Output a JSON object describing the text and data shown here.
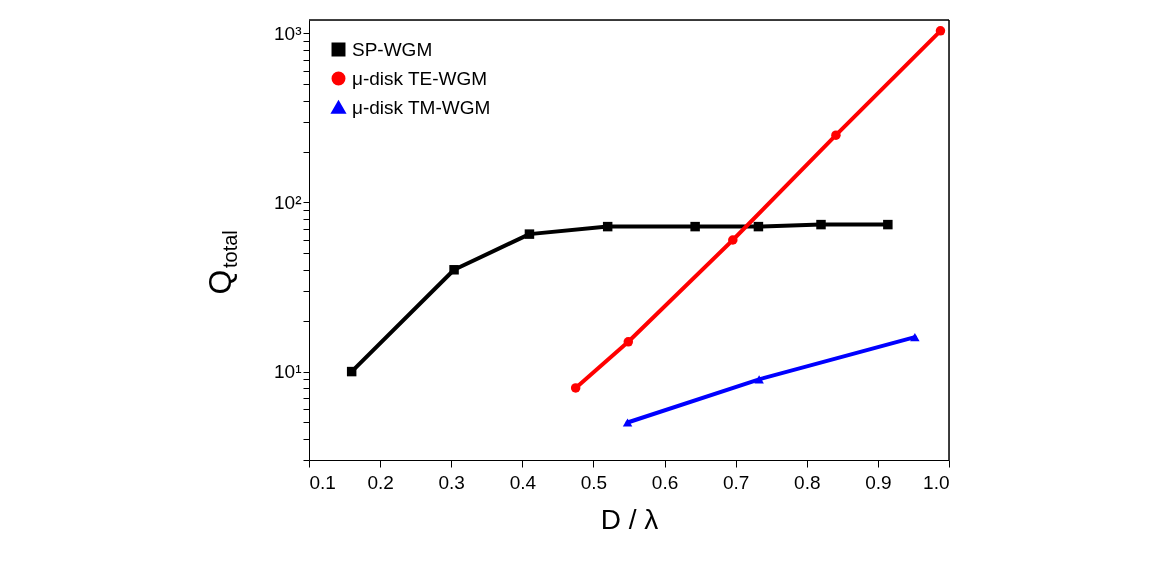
{
  "chart_data": {
    "type": "line",
    "xlabel": "D / λ",
    "ylabel": "Q$_{total}$",
    "log": "y",
    "grid": false,
    "legend": "top left",
    "xlim": [
      0.1,
      1.0
    ],
    "xticks": [
      0.1,
      0.2,
      0.3,
      0.4,
      0.5,
      0.6,
      0.7,
      0.8,
      0.9,
      {
        "value": 1.0,
        "label": "1.0"
      }
    ],
    "ylim": [
      3,
      1200
    ],
    "yticks": [
      {
        "value": 3,
        "label": null
      },
      {
        "value": 4,
        "label": null
      },
      {
        "value": 5,
        "label": null
      },
      {
        "value": 6,
        "label": null
      },
      {
        "value": 7,
        "label": null
      },
      {
        "value": 8,
        "label": null
      },
      {
        "value": 9,
        "label": null
      },
      {
        "value": 10,
        "label": "10¹"
      },
      {
        "value": 20,
        "label": null
      },
      {
        "value": 30,
        "label": null
      },
      {
        "value": 40,
        "label": null
      },
      {
        "value": 50,
        "label": null
      },
      {
        "value": 60,
        "label": null
      },
      {
        "value": 70,
        "label": null
      },
      {
        "value": 80,
        "label": null
      },
      {
        "value": 90,
        "label": null
      },
      {
        "value": 100,
        "label": "10²"
      },
      {
        "value": 200,
        "label": null
      },
      {
        "value": 300,
        "label": null
      },
      {
        "value": 400,
        "label": null
      },
      {
        "value": 500,
        "label": null
      },
      {
        "value": 600,
        "label": null
      },
      {
        "value": 700,
        "label": null
      },
      {
        "value": 800,
        "label": null
      },
      {
        "value": 900,
        "label": null
      },
      {
        "value": 1000,
        "label": "10³"
      }
    ],
    "series": [
      {
        "name": "SP-WGM",
        "color": "#000000",
        "marker": "square",
        "x": [
          0.16,
          0.304,
          0.41,
          0.52,
          0.643,
          0.732,
          0.82,
          0.914
        ],
        "values": [
          10,
          40,
          65,
          72,
          72,
          72,
          74,
          74
        ]
      },
      {
        "name": "μ-disk TE-WGM",
        "color": "#ff0000",
        "marker": "circle",
        "x": [
          0.475,
          0.549,
          0.696,
          0.841,
          0.988
        ],
        "values": [
          8,
          15,
          60,
          250,
          1035
        ]
      },
      {
        "name": "μ-disk TM-WGM",
        "color": "#0000ff",
        "marker": "triangle",
        "x": [
          0.548,
          0.733,
          0.952
        ],
        "values": [
          5,
          9,
          16
        ]
      }
    ]
  }
}
